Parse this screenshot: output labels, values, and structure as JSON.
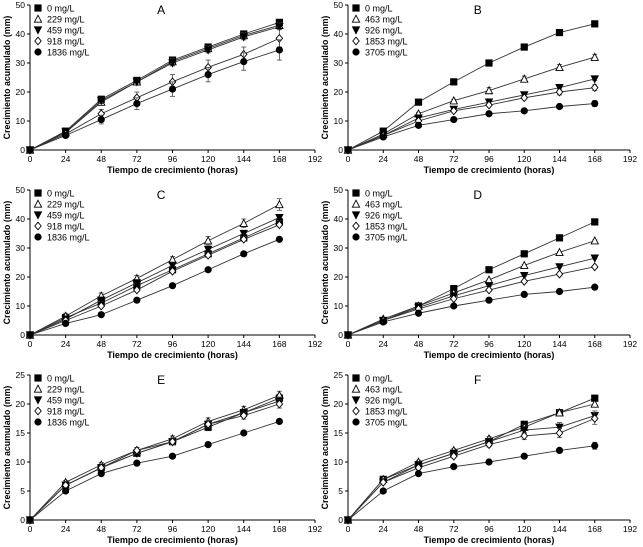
{
  "chart_data": [
    {
      "type": "line",
      "panel_label": "A",
      "xlabel": "Tiempo de crecimiento (horas)",
      "ylabel": "Crecimiento acumulado (mm)",
      "xlim": [
        0,
        192
      ],
      "ylim": [
        0,
        50
      ],
      "xticks": [
        "0",
        "24",
        "48",
        "72",
        "96",
        "120",
        "144",
        "168",
        "192"
      ],
      "yticks": [
        "0",
        "10",
        "20",
        "30",
        "40",
        "50"
      ],
      "grid": false,
      "legend_position": "top-left",
      "x": [
        0,
        24,
        48,
        72,
        96,
        120,
        144,
        168
      ],
      "series": [
        {
          "name": "0 mg/L",
          "marker": "square-filled",
          "values": [
            0,
            6.5,
            17.5,
            24,
            31,
            35.5,
            40,
            44
          ],
          "error": [
            0,
            0.5,
            1,
            1,
            1,
            1,
            1,
            1
          ]
        },
        {
          "name": "229 mg/L",
          "marker": "triangle-open",
          "values": [
            0,
            6,
            16.5,
            23.5,
            30.5,
            35,
            39.5,
            43
          ],
          "error": [
            0,
            0.5,
            1,
            1,
            1,
            1,
            1,
            1
          ]
        },
        {
          "name": "459 mg/L",
          "marker": "triangle-down-filled",
          "values": [
            0,
            6.2,
            17,
            23.5,
            30,
            34.5,
            39,
            42.5
          ],
          "error": [
            0,
            0.5,
            1,
            1,
            1,
            1,
            1,
            1
          ]
        },
        {
          "name": "918 mg/L",
          "marker": "diamond-open",
          "values": [
            0,
            5.5,
            12.5,
            18,
            23.5,
            28.5,
            33,
            38.5
          ],
          "error": [
            0,
            0.5,
            1.5,
            2,
            2.5,
            2.5,
            2.5,
            3
          ]
        },
        {
          "name": "1836 mg/L",
          "marker": "circle-filled",
          "values": [
            0,
            5,
            10.5,
            16,
            21,
            26,
            30.5,
            34.5
          ],
          "error": [
            0,
            0.5,
            1.5,
            2,
            2.5,
            2.5,
            3,
            3.5
          ]
        }
      ]
    },
    {
      "type": "line",
      "panel_label": "B",
      "xlabel": "Tiempo de crecimiento (horas)",
      "ylabel": "Crecimiento acumulado (mm)",
      "xlim": [
        0,
        192
      ],
      "ylim": [
        0,
        50
      ],
      "xticks": [
        "0",
        "24",
        "48",
        "72",
        "96",
        "120",
        "144",
        "168",
        "192"
      ],
      "yticks": [
        "0",
        "10",
        "20",
        "30",
        "40",
        "50"
      ],
      "grid": false,
      "legend_position": "top-left",
      "x": [
        0,
        24,
        48,
        72,
        96,
        120,
        144,
        168
      ],
      "series": [
        {
          "name": "0 mg/L",
          "marker": "square-filled",
          "values": [
            0,
            6.5,
            16.5,
            23.5,
            30,
            35.5,
            40.5,
            43.5
          ],
          "error": [
            0,
            0.5,
            0.5,
            0.5,
            0.5,
            0.5,
            1,
            1
          ]
        },
        {
          "name": "463 mg/L",
          "marker": "triangle-open",
          "values": [
            0,
            5.5,
            12.5,
            17,
            20.5,
            24.5,
            28.5,
            32
          ],
          "error": [
            0,
            0.5,
            0.5,
            0.5,
            1,
            1,
            1,
            1
          ]
        },
        {
          "name": "926 mg/L",
          "marker": "triangle-down-filled",
          "values": [
            0,
            5,
            11,
            14,
            16.5,
            19,
            21.5,
            24.5
          ],
          "error": [
            0,
            0.5,
            0.5,
            0.5,
            0.5,
            0.5,
            0.5,
            0.5
          ]
        },
        {
          "name": "1853 mg/L",
          "marker": "diamond-open",
          "values": [
            0,
            5,
            10,
            13.5,
            15.5,
            18,
            20,
            21.5
          ],
          "error": [
            0,
            0.5,
            0.5,
            0.5,
            0.5,
            0.5,
            1,
            1
          ]
        },
        {
          "name": "3705 mg/L",
          "marker": "circle-filled",
          "values": [
            0,
            4.5,
            8.5,
            10.5,
            12.5,
            13.5,
            15,
            16
          ],
          "error": [
            0,
            0.5,
            0.5,
            0.5,
            0.5,
            0.5,
            0.5,
            1
          ]
        }
      ]
    },
    {
      "type": "line",
      "panel_label": "C",
      "xlabel": "Tiempo de crecimiento (horas)",
      "ylabel": "Crecimiento acumulado (mm)",
      "xlim": [
        0,
        192
      ],
      "ylim": [
        0,
        50
      ],
      "xticks": [
        "0",
        "24",
        "48",
        "72",
        "96",
        "120",
        "144",
        "168",
        "192"
      ],
      "yticks": [
        "0",
        "10",
        "20",
        "30",
        "40",
        "50"
      ],
      "grid": false,
      "legend_position": "top-left",
      "x": [
        0,
        24,
        48,
        72,
        96,
        120,
        144,
        168
      ],
      "series": [
        {
          "name": "0 mg/L",
          "marker": "square-filled",
          "values": [
            0,
            6,
            11,
            17,
            22.5,
            28,
            33.5,
            39
          ],
          "error": [
            0,
            0.5,
            0.5,
            0.5,
            0.5,
            0.5,
            0.5,
            0.5
          ]
        },
        {
          "name": "229 mg/L",
          "marker": "triangle-open",
          "values": [
            0,
            6.5,
            13.5,
            19.5,
            26,
            32.5,
            38.5,
            45
          ],
          "error": [
            0,
            1,
            1,
            1,
            1,
            1.5,
            1.5,
            2
          ]
        },
        {
          "name": "459 mg/L",
          "marker": "triangle-down-filled",
          "values": [
            0,
            5.5,
            12,
            18,
            24,
            29.5,
            35,
            40.5
          ],
          "error": [
            0,
            0.5,
            0.5,
            0.5,
            0.5,
            1,
            1,
            1
          ]
        },
        {
          "name": "918 mg/L",
          "marker": "diamond-open",
          "values": [
            0,
            5,
            10,
            15.5,
            22,
            27.5,
            33,
            38
          ],
          "error": [
            0,
            0.5,
            0.5,
            0.5,
            0.5,
            0.5,
            0.5,
            0.5
          ]
        },
        {
          "name": "1836 mg/L",
          "marker": "circle-filled",
          "values": [
            0,
            4,
            7,
            12,
            17,
            22.5,
            28,
            33
          ],
          "error": [
            0,
            0.5,
            0.5,
            0.5,
            0.5,
            0.5,
            0.5,
            0.5
          ]
        }
      ]
    },
    {
      "type": "line",
      "panel_label": "D",
      "xlabel": "Tiempo de crecimiento (horas)",
      "ylabel": "Crecimiento acumulado (mm)",
      "xlim": [
        0,
        192
      ],
      "ylim": [
        0,
        50
      ],
      "xticks": [
        "0",
        "24",
        "48",
        "72",
        "96",
        "120",
        "144",
        "168",
        "192"
      ],
      "yticks": [
        "0",
        "10",
        "20",
        "30",
        "40",
        "50"
      ],
      "grid": false,
      "legend_position": "top-left",
      "x": [
        0,
        24,
        48,
        72,
        96,
        120,
        144,
        168
      ],
      "series": [
        {
          "name": "0 mg/L",
          "marker": "square-filled",
          "values": [
            0,
            5,
            10,
            16,
            22.5,
            28,
            33.5,
            39
          ],
          "error": [
            0,
            0.3,
            0.3,
            0.3,
            0.3,
            0.3,
            0.3,
            0.3
          ]
        },
        {
          "name": "463 mg/L",
          "marker": "triangle-open",
          "values": [
            0,
            5.5,
            10,
            14.5,
            19,
            24,
            28.5,
            32.5
          ],
          "error": [
            0,
            0.3,
            0.3,
            0.3,
            0.3,
            0.3,
            0.3,
            0.3
          ]
        },
        {
          "name": "926 mg/L",
          "marker": "triangle-down-filled",
          "values": [
            0,
            5,
            9.5,
            13.5,
            17,
            20.5,
            23.5,
            26.5
          ],
          "error": [
            0,
            0.3,
            0.3,
            0.3,
            0.3,
            0.3,
            0.3,
            0.3
          ]
        },
        {
          "name": "1853 mg/L",
          "marker": "diamond-open",
          "values": [
            0,
            5,
            9,
            12.5,
            15.5,
            18.5,
            21,
            23.5
          ],
          "error": [
            0,
            0.3,
            0.3,
            0.3,
            0.3,
            0.3,
            0.3,
            0.3
          ]
        },
        {
          "name": "3705 mg/L",
          "marker": "circle-filled",
          "values": [
            0,
            4.5,
            7.5,
            10,
            12,
            14,
            15,
            16.5
          ],
          "error": [
            0,
            0.3,
            0.3,
            0.3,
            0.3,
            0.3,
            0.3,
            0.3
          ]
        }
      ]
    },
    {
      "type": "line",
      "panel_label": "E",
      "xlabel": "Tiempo de crecimiento (horas)",
      "ylabel": "Crecimiento acumulado (mm)",
      "xlim": [
        0,
        192
      ],
      "ylim": [
        0,
        25
      ],
      "xticks": [
        "0",
        "24",
        "48",
        "72",
        "96",
        "120",
        "144",
        "168",
        "192"
      ],
      "yticks": [
        "0",
        "5",
        "10",
        "15",
        "20",
        "25"
      ],
      "grid": false,
      "legend_position": "top-left",
      "x": [
        0,
        24,
        48,
        72,
        96,
        120,
        144,
        168
      ],
      "series": [
        {
          "name": "0 mg/L",
          "marker": "square-filled",
          "values": [
            0,
            6,
            9,
            11.5,
            13.5,
            16,
            18.5,
            21
          ],
          "error": [
            0,
            0.3,
            0.4,
            0.5,
            0.5,
            0.6,
            0.6,
            0.7
          ]
        },
        {
          "name": "229 mg/L",
          "marker": "triangle-open",
          "values": [
            0,
            6.5,
            9.5,
            12,
            14,
            17,
            19,
            21.5
          ],
          "error": [
            0,
            0.3,
            0.4,
            0.5,
            0.5,
            0.6,
            0.6,
            0.7
          ]
        },
        {
          "name": "459 mg/L",
          "marker": "triangle-down-filled",
          "values": [
            0,
            6,
            9,
            11.5,
            13.5,
            16.5,
            18.5,
            20.5
          ],
          "error": [
            0,
            0.3,
            0.4,
            0.5,
            0.5,
            0.6,
            0.6,
            0.7
          ]
        },
        {
          "name": "918 mg/L",
          "marker": "diamond-open",
          "values": [
            0,
            6,
            9,
            12,
            13.5,
            16.5,
            18,
            20
          ],
          "error": [
            0,
            0.3,
            0.4,
            0.5,
            0.5,
            0.6,
            0.6,
            0.7
          ]
        },
        {
          "name": "1836 mg/L",
          "marker": "circle-filled",
          "values": [
            0,
            5,
            8,
            9.8,
            11,
            13,
            15,
            17
          ],
          "error": [
            0,
            0.2,
            0.2,
            0.2,
            0.2,
            0.2,
            0.2,
            0.3
          ]
        }
      ]
    },
    {
      "type": "line",
      "panel_label": "F",
      "xlabel": "Tiempo de crecimiento (horas)",
      "ylabel": "Crecimiento acumulado (mm)",
      "xlim": [
        0,
        192
      ],
      "ylim": [
        0,
        25
      ],
      "xticks": [
        "0",
        "24",
        "48",
        "72",
        "96",
        "120",
        "144",
        "168",
        "192"
      ],
      "yticks": [
        "0",
        "5",
        "10",
        "15",
        "20",
        "25"
      ],
      "grid": false,
      "legend_position": "top-left",
      "x": [
        0,
        24,
        48,
        72,
        96,
        120,
        144,
        168
      ],
      "series": [
        {
          "name": "0 mg/L",
          "marker": "square-filled",
          "values": [
            0,
            7,
            9.5,
            11.5,
            13.5,
            16.5,
            18.5,
            21
          ],
          "error": [
            0,
            0.3,
            0.3,
            0.3,
            0.4,
            0.4,
            0.4,
            0.4
          ]
        },
        {
          "name": "463 mg/L",
          "marker": "triangle-open",
          "values": [
            0,
            7,
            10,
            12,
            14,
            16,
            18.5,
            20
          ],
          "error": [
            0,
            0.3,
            0.3,
            0.3,
            0.4,
            0.4,
            0.4,
            0.4
          ]
        },
        {
          "name": "926 mg/L",
          "marker": "triangle-down-filled",
          "values": [
            0,
            6.5,
            9.5,
            11.5,
            13.5,
            15.5,
            16,
            18
          ],
          "error": [
            0,
            0.3,
            0.3,
            0.3,
            0.4,
            0.6,
            0.8,
            0.8
          ]
        },
        {
          "name": "1853 mg/L",
          "marker": "diamond-open",
          "values": [
            0,
            6.5,
            9,
            11,
            13,
            14.5,
            15,
            17.5
          ],
          "error": [
            0,
            0.3,
            0.3,
            0.3,
            0.4,
            0.6,
            0.8,
            1
          ]
        },
        {
          "name": "3705 mg/L",
          "marker": "circle-filled",
          "values": [
            0,
            5,
            8,
            9.2,
            10,
            11,
            12,
            12.8
          ],
          "error": [
            0,
            0.2,
            0.2,
            0.2,
            0.3,
            0.3,
            0.4,
            0.6
          ]
        }
      ]
    }
  ]
}
